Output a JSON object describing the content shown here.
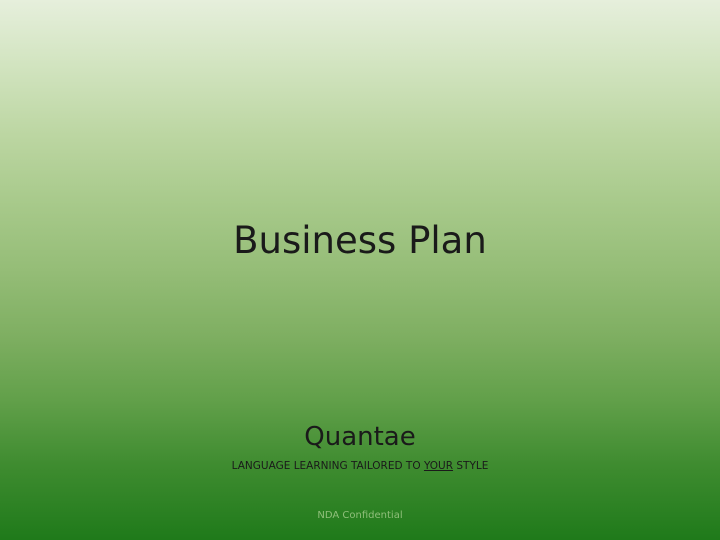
{
  "slide": {
    "title": "Business Plan",
    "company": "Quantae",
    "tagline": {
      "before": "LANGUAGE LEARNING TAILORED TO ",
      "emphasis": "YOUR",
      "after": " STYLE"
    },
    "footer": "NDA Confidential"
  },
  "colors": {
    "gradient_top": "#e6efdc",
    "gradient_bottom": "#1f7a1a",
    "text": "#1a1a1a",
    "footer_text": "#8fbf7a"
  }
}
